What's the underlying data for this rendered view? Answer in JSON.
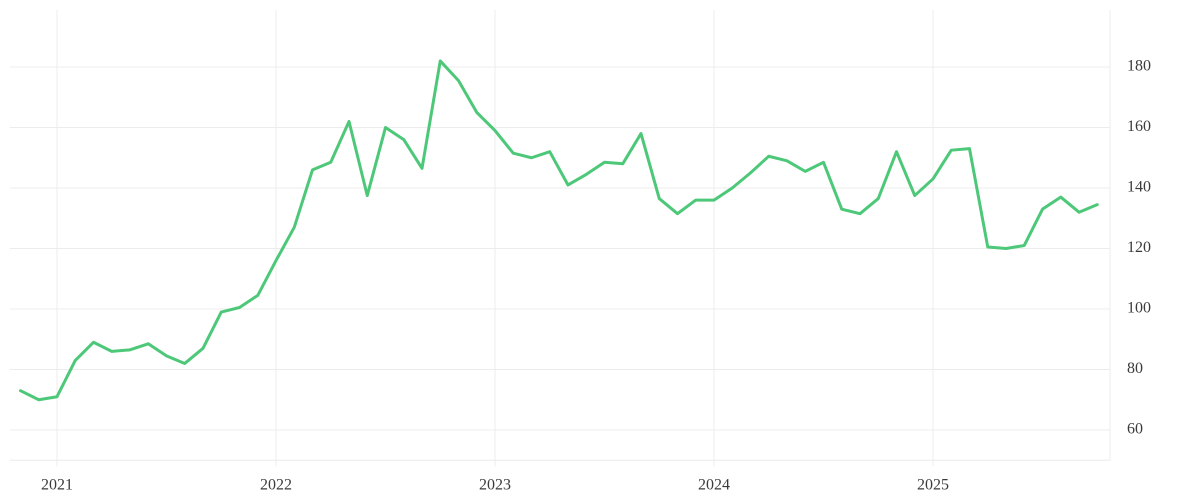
{
  "chart_data": {
    "type": "line",
    "title": "",
    "xlabel": "",
    "ylabel": "",
    "x": [
      "2020-11",
      "2020-12",
      "2021-01",
      "2021-02",
      "2021-03",
      "2021-04",
      "2021-05",
      "2021-06",
      "2021-07",
      "2021-08",
      "2021-09",
      "2021-10",
      "2021-11",
      "2021-12",
      "2022-01",
      "2022-02",
      "2022-03",
      "2022-04",
      "2022-05",
      "2022-06",
      "2022-07",
      "2022-08",
      "2022-09",
      "2022-10",
      "2022-11",
      "2022-12",
      "2023-01",
      "2023-02",
      "2023-03",
      "2023-04",
      "2023-05",
      "2023-06",
      "2023-07",
      "2023-08",
      "2023-09",
      "2023-10",
      "2023-11",
      "2023-12",
      "2024-01",
      "2024-02",
      "2024-03",
      "2024-04",
      "2024-05",
      "2024-06",
      "2024-07",
      "2024-08",
      "2024-09",
      "2024-10",
      "2024-11",
      "2024-12",
      "2025-01",
      "2025-02",
      "2025-03",
      "2025-04",
      "2025-05",
      "2025-06",
      "2025-07",
      "2025-08",
      "2025-09",
      "2025-10"
    ],
    "values": [
      73,
      70,
      71,
      83,
      89,
      86,
      86.5,
      88.5,
      84.5,
      82,
      87,
      99,
      100.5,
      104.5,
      116,
      127,
      146,
      148.5,
      162,
      137.5,
      160,
      156,
      146.5,
      182,
      175.5,
      165,
      159,
      151.5,
      150,
      152,
      141,
      144.5,
      148.5,
      148,
      158,
      136.5,
      131.5,
      136,
      136,
      140,
      145,
      150.5,
      149,
      145.5,
      148.5,
      133,
      131.5,
      136.5,
      152,
      137.5,
      143,
      152.5,
      153,
      120.5,
      120,
      121,
      133,
      137,
      132,
      134.5
    ],
    "x_tick_labels": [
      "2021",
      "2022",
      "2023",
      "2024",
      "2025"
    ],
    "y_tick_labels": [
      "180",
      "160",
      "140",
      "120",
      "100",
      "80",
      "60"
    ],
    "y_tick_values": [
      180,
      160,
      140,
      120,
      100,
      80,
      60
    ],
    "ylim": [
      50,
      185
    ],
    "grid": "on",
    "legend": "none",
    "line_color": "#4dc879",
    "grid_color": "#ececec",
    "axis_text_color": "#3b3b3b",
    "background_color": "#ffffff"
  }
}
